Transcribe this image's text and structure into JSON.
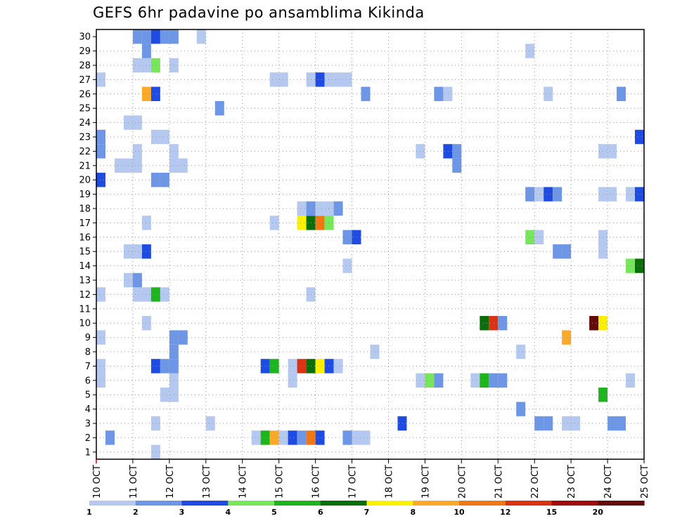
{
  "title": "GEFS 6hr padavine po ansamblima Kikinda",
  "chart_data": {
    "type": "heatmap",
    "title": "GEFS 6hr padavine po ansamblima Kikinda",
    "x_tick_labels": [
      "10 OCT",
      "11 OCT",
      "12 OCT",
      "13 OCT",
      "14 OCT",
      "15 OCT",
      "16 OCT",
      "17 OCT",
      "18 OCT",
      "19 OCT",
      "20 OCT",
      "21 OCT",
      "22 OCT",
      "23 OCT",
      "24 OCT",
      "25 OCT"
    ],
    "x_range_days": [
      0,
      15
    ],
    "y_range": [
      0,
      30
    ],
    "y_tick_labels": [
      "1",
      "2",
      "3",
      "4",
      "5",
      "6",
      "7",
      "8",
      "9",
      "10",
      "11",
      "12",
      "13",
      "14",
      "15",
      "16",
      "17",
      "18",
      "19",
      "20",
      "21",
      "22",
      "23",
      "24",
      "25",
      "26",
      "27",
      "28",
      "29",
      "30"
    ],
    "grid": true,
    "colorbar": {
      "levels": [
        "1",
        "2",
        "3",
        "4",
        "5",
        "6",
        "7",
        "8",
        "10",
        "12",
        "15",
        "20"
      ],
      "colors": [
        "#b4c8f0",
        "#6e96e6",
        "#1e4be1",
        "#78e65a",
        "#1eb41e",
        "#0a6e0a",
        "#faf000",
        "#faaa28",
        "#f07814",
        "#dc3214",
        "#a00a0a",
        "#640a0a"
      ]
    },
    "cells": [
      {
        "day": 0.25,
        "m": 1,
        "c": 1
      },
      {
        "day": 4.25,
        "m": 1,
        "c": 0
      },
      {
        "day": 4.5,
        "m": 1,
        "c": 4
      },
      {
        "day": 4.75,
        "m": 1,
        "c": 7
      },
      {
        "day": 5.0,
        "m": 1,
        "c": 0
      },
      {
        "day": 5.25,
        "m": 1,
        "c": 2
      },
      {
        "day": 5.5,
        "m": 1,
        "c": 1
      },
      {
        "day": 5.75,
        "m": 1,
        "c": 8
      },
      {
        "day": 6.0,
        "m": 1,
        "c": 2
      },
      {
        "day": 6.75,
        "m": 1,
        "c": 1
      },
      {
        "day": 7.0,
        "m": 1,
        "c": 0
      },
      {
        "day": 7.25,
        "m": 1,
        "c": 0
      },
      {
        "day": 1.5,
        "m": 2,
        "c": 0
      },
      {
        "day": 3.0,
        "m": 2,
        "c": 0
      },
      {
        "day": 8.25,
        "m": 2,
        "c": 2
      },
      {
        "day": 12.0,
        "m": 2,
        "c": 1
      },
      {
        "day": 12.25,
        "m": 2,
        "c": 1
      },
      {
        "day": 12.75,
        "m": 2,
        "c": 0
      },
      {
        "day": 13.0,
        "m": 2,
        "c": 0
      },
      {
        "day": 14.0,
        "m": 2,
        "c": 1
      },
      {
        "day": 14.25,
        "m": 2,
        "c": 1
      },
      {
        "day": 11.5,
        "m": 3,
        "c": 1
      },
      {
        "day": 1.75,
        "m": 4,
        "c": 0
      },
      {
        "day": 2.0,
        "m": 4,
        "c": 0
      },
      {
        "day": 13.75,
        "m": 4,
        "c": 4
      },
      {
        "day": 0.0,
        "m": 5,
        "c": 0
      },
      {
        "day": 2.0,
        "m": 5,
        "c": 0
      },
      {
        "day": 5.25,
        "m": 5,
        "c": 0
      },
      {
        "day": 8.75,
        "m": 5,
        "c": 0
      },
      {
        "day": 9.0,
        "m": 5,
        "c": 3
      },
      {
        "day": 9.25,
        "m": 5,
        "c": 1
      },
      {
        "day": 10.25,
        "m": 5,
        "c": 0
      },
      {
        "day": 10.5,
        "m": 5,
        "c": 4
      },
      {
        "day": 10.75,
        "m": 5,
        "c": 1
      },
      {
        "day": 11.0,
        "m": 5,
        "c": 1
      },
      {
        "day": 14.5,
        "m": 5,
        "c": 0
      },
      {
        "day": 0.0,
        "m": 6,
        "c": 0
      },
      {
        "day": 1.5,
        "m": 6,
        "c": 2
      },
      {
        "day": 1.75,
        "m": 6,
        "c": 1
      },
      {
        "day": 2.0,
        "m": 6,
        "c": 1
      },
      {
        "day": 4.5,
        "m": 6,
        "c": 2
      },
      {
        "day": 4.75,
        "m": 6,
        "c": 4
      },
      {
        "day": 5.25,
        "m": 6,
        "c": 0
      },
      {
        "day": 5.5,
        "m": 6,
        "c": 9
      },
      {
        "day": 5.75,
        "m": 6,
        "c": 5
      },
      {
        "day": 6.0,
        "m": 6,
        "c": 6
      },
      {
        "day": 6.25,
        "m": 6,
        "c": 2
      },
      {
        "day": 6.5,
        "m": 6,
        "c": 0
      },
      {
        "day": 2.0,
        "m": 7,
        "c": 1
      },
      {
        "day": 7.5,
        "m": 7,
        "c": 0
      },
      {
        "day": 11.5,
        "m": 7,
        "c": 0
      },
      {
        "day": 0.0,
        "m": 8,
        "c": 0
      },
      {
        "day": 2.0,
        "m": 8,
        "c": 1
      },
      {
        "day": 2.25,
        "m": 8,
        "c": 1
      },
      {
        "day": 12.75,
        "m": 8,
        "c": 7
      },
      {
        "day": 1.25,
        "m": 9,
        "c": 0
      },
      {
        "day": 10.5,
        "m": 9,
        "c": 5
      },
      {
        "day": 10.75,
        "m": 9,
        "c": 9
      },
      {
        "day": 11.0,
        "m": 9,
        "c": 1
      },
      {
        "day": 13.5,
        "m": 9,
        "c": 11
      },
      {
        "day": 13.75,
        "m": 9,
        "c": 6
      },
      {
        "day": 0.0,
        "m": 11,
        "c": 0
      },
      {
        "day": 1.0,
        "m": 11,
        "c": 0
      },
      {
        "day": 1.25,
        "m": 11,
        "c": 0
      },
      {
        "day": 1.5,
        "m": 11,
        "c": 4
      },
      {
        "day": 1.75,
        "m": 11,
        "c": 0
      },
      {
        "day": 5.75,
        "m": 11,
        "c": 0
      },
      {
        "day": 0.75,
        "m": 12,
        "c": 0
      },
      {
        "day": 1.0,
        "m": 12,
        "c": 1
      },
      {
        "day": 6.75,
        "m": 13,
        "c": 0
      },
      {
        "day": 14.5,
        "m": 13,
        "c": 3
      },
      {
        "day": 14.75,
        "m": 13,
        "c": 5
      },
      {
        "day": 0.75,
        "m": 14,
        "c": 0
      },
      {
        "day": 1.0,
        "m": 14,
        "c": 0
      },
      {
        "day": 1.25,
        "m": 14,
        "c": 2
      },
      {
        "day": 12.5,
        "m": 14,
        "c": 1
      },
      {
        "day": 12.75,
        "m": 14,
        "c": 1
      },
      {
        "day": 13.75,
        "m": 14,
        "c": 0
      },
      {
        "day": 6.75,
        "m": 15,
        "c": 1
      },
      {
        "day": 7.0,
        "m": 15,
        "c": 2
      },
      {
        "day": 11.75,
        "m": 15,
        "c": 3
      },
      {
        "day": 12.0,
        "m": 15,
        "c": 0
      },
      {
        "day": 13.75,
        "m": 15,
        "c": 0
      },
      {
        "day": 1.25,
        "m": 16,
        "c": 0
      },
      {
        "day": 4.75,
        "m": 16,
        "c": 0
      },
      {
        "day": 5.5,
        "m": 16,
        "c": 6
      },
      {
        "day": 5.75,
        "m": 16,
        "c": 5
      },
      {
        "day": 6.0,
        "m": 16,
        "c": 8
      },
      {
        "day": 6.25,
        "m": 16,
        "c": 3
      },
      {
        "day": 5.5,
        "m": 17,
        "c": 0
      },
      {
        "day": 5.75,
        "m": 17,
        "c": 1
      },
      {
        "day": 6.0,
        "m": 17,
        "c": 0
      },
      {
        "day": 6.25,
        "m": 17,
        "c": 0
      },
      {
        "day": 6.5,
        "m": 17,
        "c": 1
      },
      {
        "day": 11.75,
        "m": 18,
        "c": 1
      },
      {
        "day": 12.0,
        "m": 18,
        "c": 0
      },
      {
        "day": 12.25,
        "m": 18,
        "c": 2
      },
      {
        "day": 12.5,
        "m": 18,
        "c": 1
      },
      {
        "day": 13.75,
        "m": 18,
        "c": 0
      },
      {
        "day": 14.0,
        "m": 18,
        "c": 0
      },
      {
        "day": 14.5,
        "m": 18,
        "c": 0
      },
      {
        "day": 14.75,
        "m": 18,
        "c": 2
      },
      {
        "day": 0.0,
        "m": 19,
        "c": 2
      },
      {
        "day": 1.5,
        "m": 19,
        "c": 1
      },
      {
        "day": 1.75,
        "m": 19,
        "c": 1
      },
      {
        "day": 0.5,
        "m": 20,
        "c": 0
      },
      {
        "day": 0.75,
        "m": 20,
        "c": 0
      },
      {
        "day": 1.0,
        "m": 20,
        "c": 0
      },
      {
        "day": 2.0,
        "m": 20,
        "c": 0
      },
      {
        "day": 2.25,
        "m": 20,
        "c": 0
      },
      {
        "day": 9.75,
        "m": 20,
        "c": 1
      },
      {
        "day": 0.0,
        "m": 21,
        "c": 1
      },
      {
        "day": 1.0,
        "m": 21,
        "c": 0
      },
      {
        "day": 2.0,
        "m": 21,
        "c": 0
      },
      {
        "day": 8.75,
        "m": 21,
        "c": 0
      },
      {
        "day": 9.5,
        "m": 21,
        "c": 2
      },
      {
        "day": 9.75,
        "m": 21,
        "c": 1
      },
      {
        "day": 13.75,
        "m": 21,
        "c": 0
      },
      {
        "day": 14.0,
        "m": 21,
        "c": 0
      },
      {
        "day": 0.0,
        "m": 22,
        "c": 1
      },
      {
        "day": 1.5,
        "m": 22,
        "c": 0
      },
      {
        "day": 1.75,
        "m": 22,
        "c": 0
      },
      {
        "day": 14.75,
        "m": 22,
        "c": 2
      },
      {
        "day": 0.75,
        "m": 23,
        "c": 0
      },
      {
        "day": 1.0,
        "m": 23,
        "c": 0
      },
      {
        "day": 3.25,
        "m": 24,
        "c": 1
      },
      {
        "day": 1.25,
        "m": 25,
        "c": 7
      },
      {
        "day": 1.5,
        "m": 25,
        "c": 2
      },
      {
        "day": 7.25,
        "m": 25,
        "c": 1
      },
      {
        "day": 9.25,
        "m": 25,
        "c": 1
      },
      {
        "day": 9.5,
        "m": 25,
        "c": 0
      },
      {
        "day": 12.25,
        "m": 25,
        "c": 0
      },
      {
        "day": 14.25,
        "m": 25,
        "c": 1
      },
      {
        "day": 0.0,
        "m": 26,
        "c": 0
      },
      {
        "day": 4.75,
        "m": 26,
        "c": 0
      },
      {
        "day": 5.0,
        "m": 26,
        "c": 0
      },
      {
        "day": 5.75,
        "m": 26,
        "c": 0
      },
      {
        "day": 6.0,
        "m": 26,
        "c": 2
      },
      {
        "day": 6.25,
        "m": 26,
        "c": 0
      },
      {
        "day": 6.5,
        "m": 26,
        "c": 0
      },
      {
        "day": 6.75,
        "m": 26,
        "c": 0
      },
      {
        "day": 1.0,
        "m": 27,
        "c": 0
      },
      {
        "day": 1.25,
        "m": 27,
        "c": 0
      },
      {
        "day": 1.5,
        "m": 27,
        "c": 3
      },
      {
        "day": 2.0,
        "m": 27,
        "c": 0
      },
      {
        "day": 1.25,
        "m": 28,
        "c": 1
      },
      {
        "day": 11.75,
        "m": 28,
        "c": 0
      },
      {
        "day": 1.0,
        "m": 29,
        "c": 1
      },
      {
        "day": 1.25,
        "m": 29,
        "c": 1
      },
      {
        "day": 1.5,
        "m": 29,
        "c": 2
      },
      {
        "day": 1.75,
        "m": 29,
        "c": 1
      },
      {
        "day": 2.0,
        "m": 29,
        "c": 1
      },
      {
        "day": 2.75,
        "m": 29,
        "c": 0
      },
      {
        "day": 1.5,
        "m": 0,
        "c": 0
      }
    ]
  }
}
